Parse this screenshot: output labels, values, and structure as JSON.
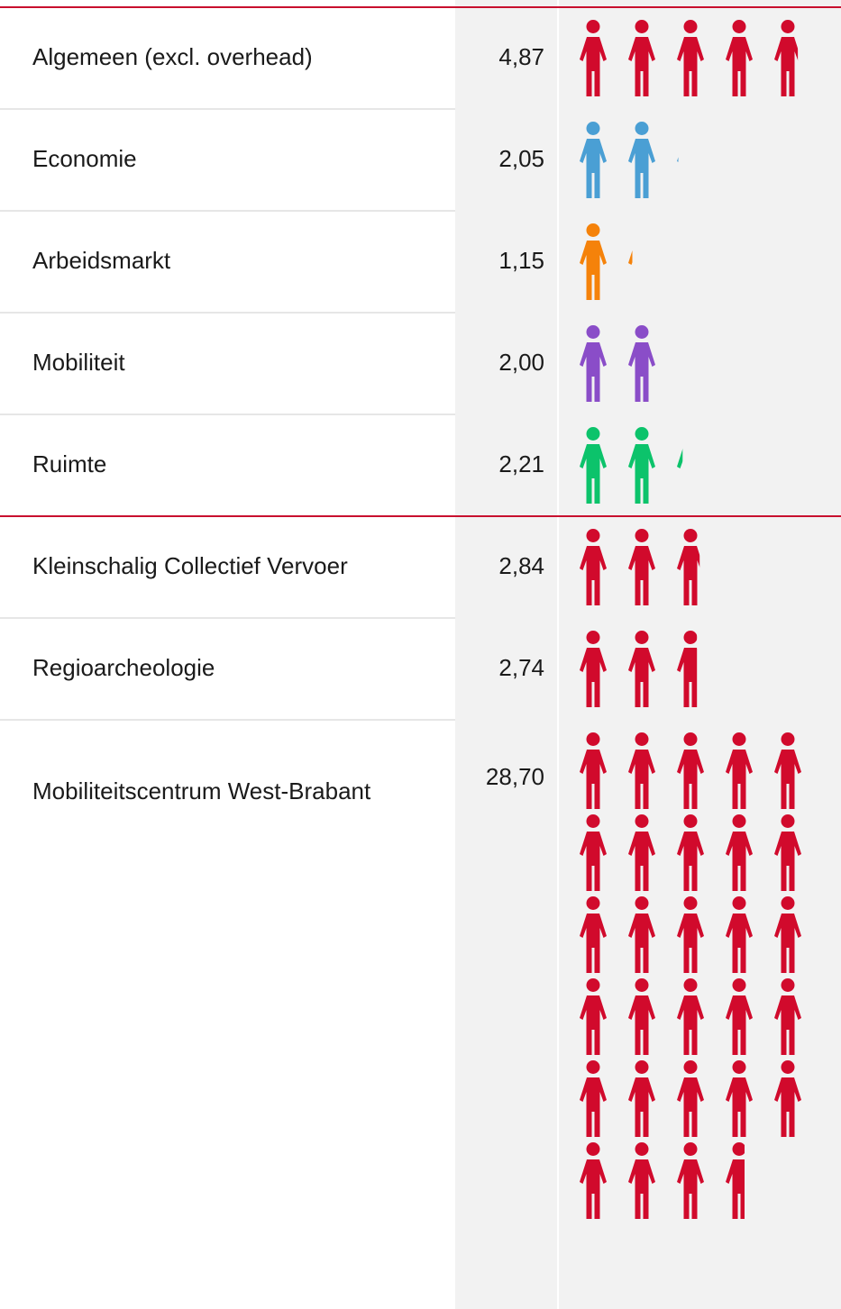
{
  "chart_data": {
    "type": "pictogram",
    "categories": [
      "Algemeen (excl. overhead)",
      "Economie",
      "Arbeidsmarkt",
      "Mobiliteit",
      "Ruimte",
      "Kleinschalig Collectief Vervoer",
      "Regioarcheologie",
      "Mobiliteitscentrum West-Brabant"
    ],
    "values": [
      4.87,
      2.05,
      1.15,
      2.0,
      2.21,
      2.84,
      2.74,
      28.7
    ],
    "value_labels": [
      "4,87",
      "2,05",
      "1,15",
      "2,00",
      "2,21",
      "2,84",
      "2,74",
      "28,70"
    ],
    "colors": [
      "#d10a2c",
      "#4a9fd4",
      "#f5820a",
      "#8a4dc8",
      "#0cc36b",
      "#d10a2c",
      "#d10a2c",
      "#d10a2c"
    ]
  }
}
